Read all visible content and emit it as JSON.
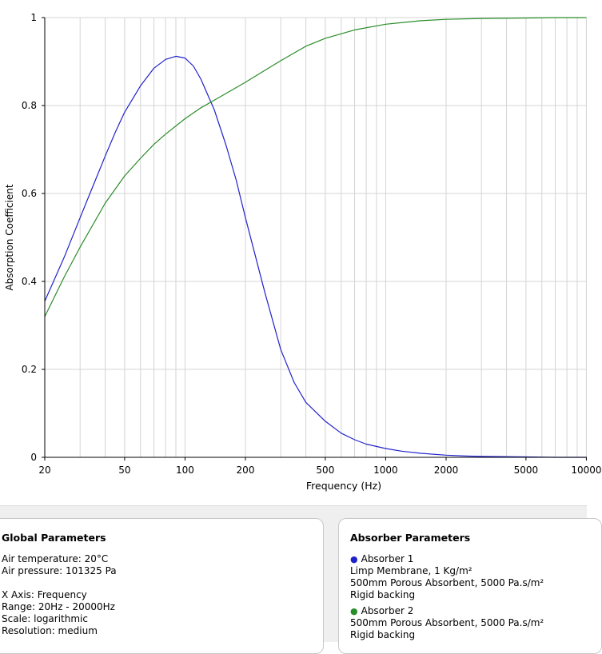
{
  "chart_data": {
    "type": "line",
    "xlabel": "Frequency (Hz)",
    "ylabel": "Absorption Coefficient",
    "xscale": "log",
    "xlim": [
      20,
      10000
    ],
    "ylim": [
      0,
      1
    ],
    "xtick_values": [
      20,
      50,
      100,
      200,
      500,
      1000,
      2000,
      5000,
      10000
    ],
    "xtick_labels": [
      "20",
      "50",
      "100",
      "200",
      "500",
      "1000",
      "2000",
      "5000",
      "10000"
    ],
    "ytick_values": [
      0,
      0.2,
      0.4,
      0.6,
      0.8,
      1
    ],
    "ytick_labels": [
      "0",
      "0.2",
      "0.4",
      "0.6",
      "0.8",
      "1"
    ],
    "grid": true,
    "series": [
      {
        "color": "#2222cc",
        "x": [
          20,
          25,
          30,
          35,
          40,
          45,
          50,
          60,
          70,
          80,
          90,
          100,
          110,
          120,
          140,
          160,
          180,
          200,
          250,
          300,
          350,
          400,
          500,
          600,
          700,
          800,
          1000,
          1200,
          1500,
          2000,
          2500,
          3000,
          5000,
          7000,
          10000
        ],
        "y": [
          0.355,
          0.455,
          0.545,
          0.62,
          0.685,
          0.74,
          0.785,
          0.845,
          0.885,
          0.905,
          0.912,
          0.908,
          0.89,
          0.86,
          0.79,
          0.71,
          0.63,
          0.545,
          0.375,
          0.245,
          0.17,
          0.125,
          0.082,
          0.055,
          0.04,
          0.03,
          0.02,
          0.014,
          0.009,
          0.005,
          0.003,
          0.002,
          0.001,
          0,
          0
        ]
      },
      {
        "color": "#2a8c2a",
        "x": [
          20,
          25,
          30,
          40,
          50,
          60,
          70,
          80,
          100,
          120,
          150,
          200,
          250,
          300,
          400,
          500,
          700,
          1000,
          1500,
          2000,
          3000,
          5000,
          7000,
          10000
        ],
        "y": [
          0.32,
          0.41,
          0.478,
          0.578,
          0.64,
          0.68,
          0.712,
          0.735,
          0.77,
          0.795,
          0.82,
          0.853,
          0.88,
          0.902,
          0.935,
          0.953,
          0.972,
          0.985,
          0.993,
          0.996,
          0.998,
          0.999,
          1.0,
          1.0
        ]
      }
    ]
  },
  "global": {
    "title": "Global Parameters",
    "temperature": "Air temperature: 20°C",
    "pressure": "Air pressure: 101325 Pa",
    "xaxis": "X Axis: Frequency",
    "range": "Range: 20Hz - 20000Hz",
    "scale": "Scale: logarithmic",
    "resolution": "Resolution: medium"
  },
  "absorbers": {
    "title": "Absorber Parameters",
    "bullet": "●",
    "a1": {
      "name": "Absorber 1",
      "color": "#2222cc",
      "line1": "Limp Membrane, 1 Kg/m²",
      "line2": "500mm Porous Absorbent, 5000 Pa.s/m²",
      "line3": "Rigid backing"
    },
    "a2": {
      "name": "Absorber 2",
      "color": "#2a8c2a",
      "line1": "500mm Porous Absorbent, 5000 Pa.s/m²",
      "line2": "Rigid backing"
    }
  }
}
